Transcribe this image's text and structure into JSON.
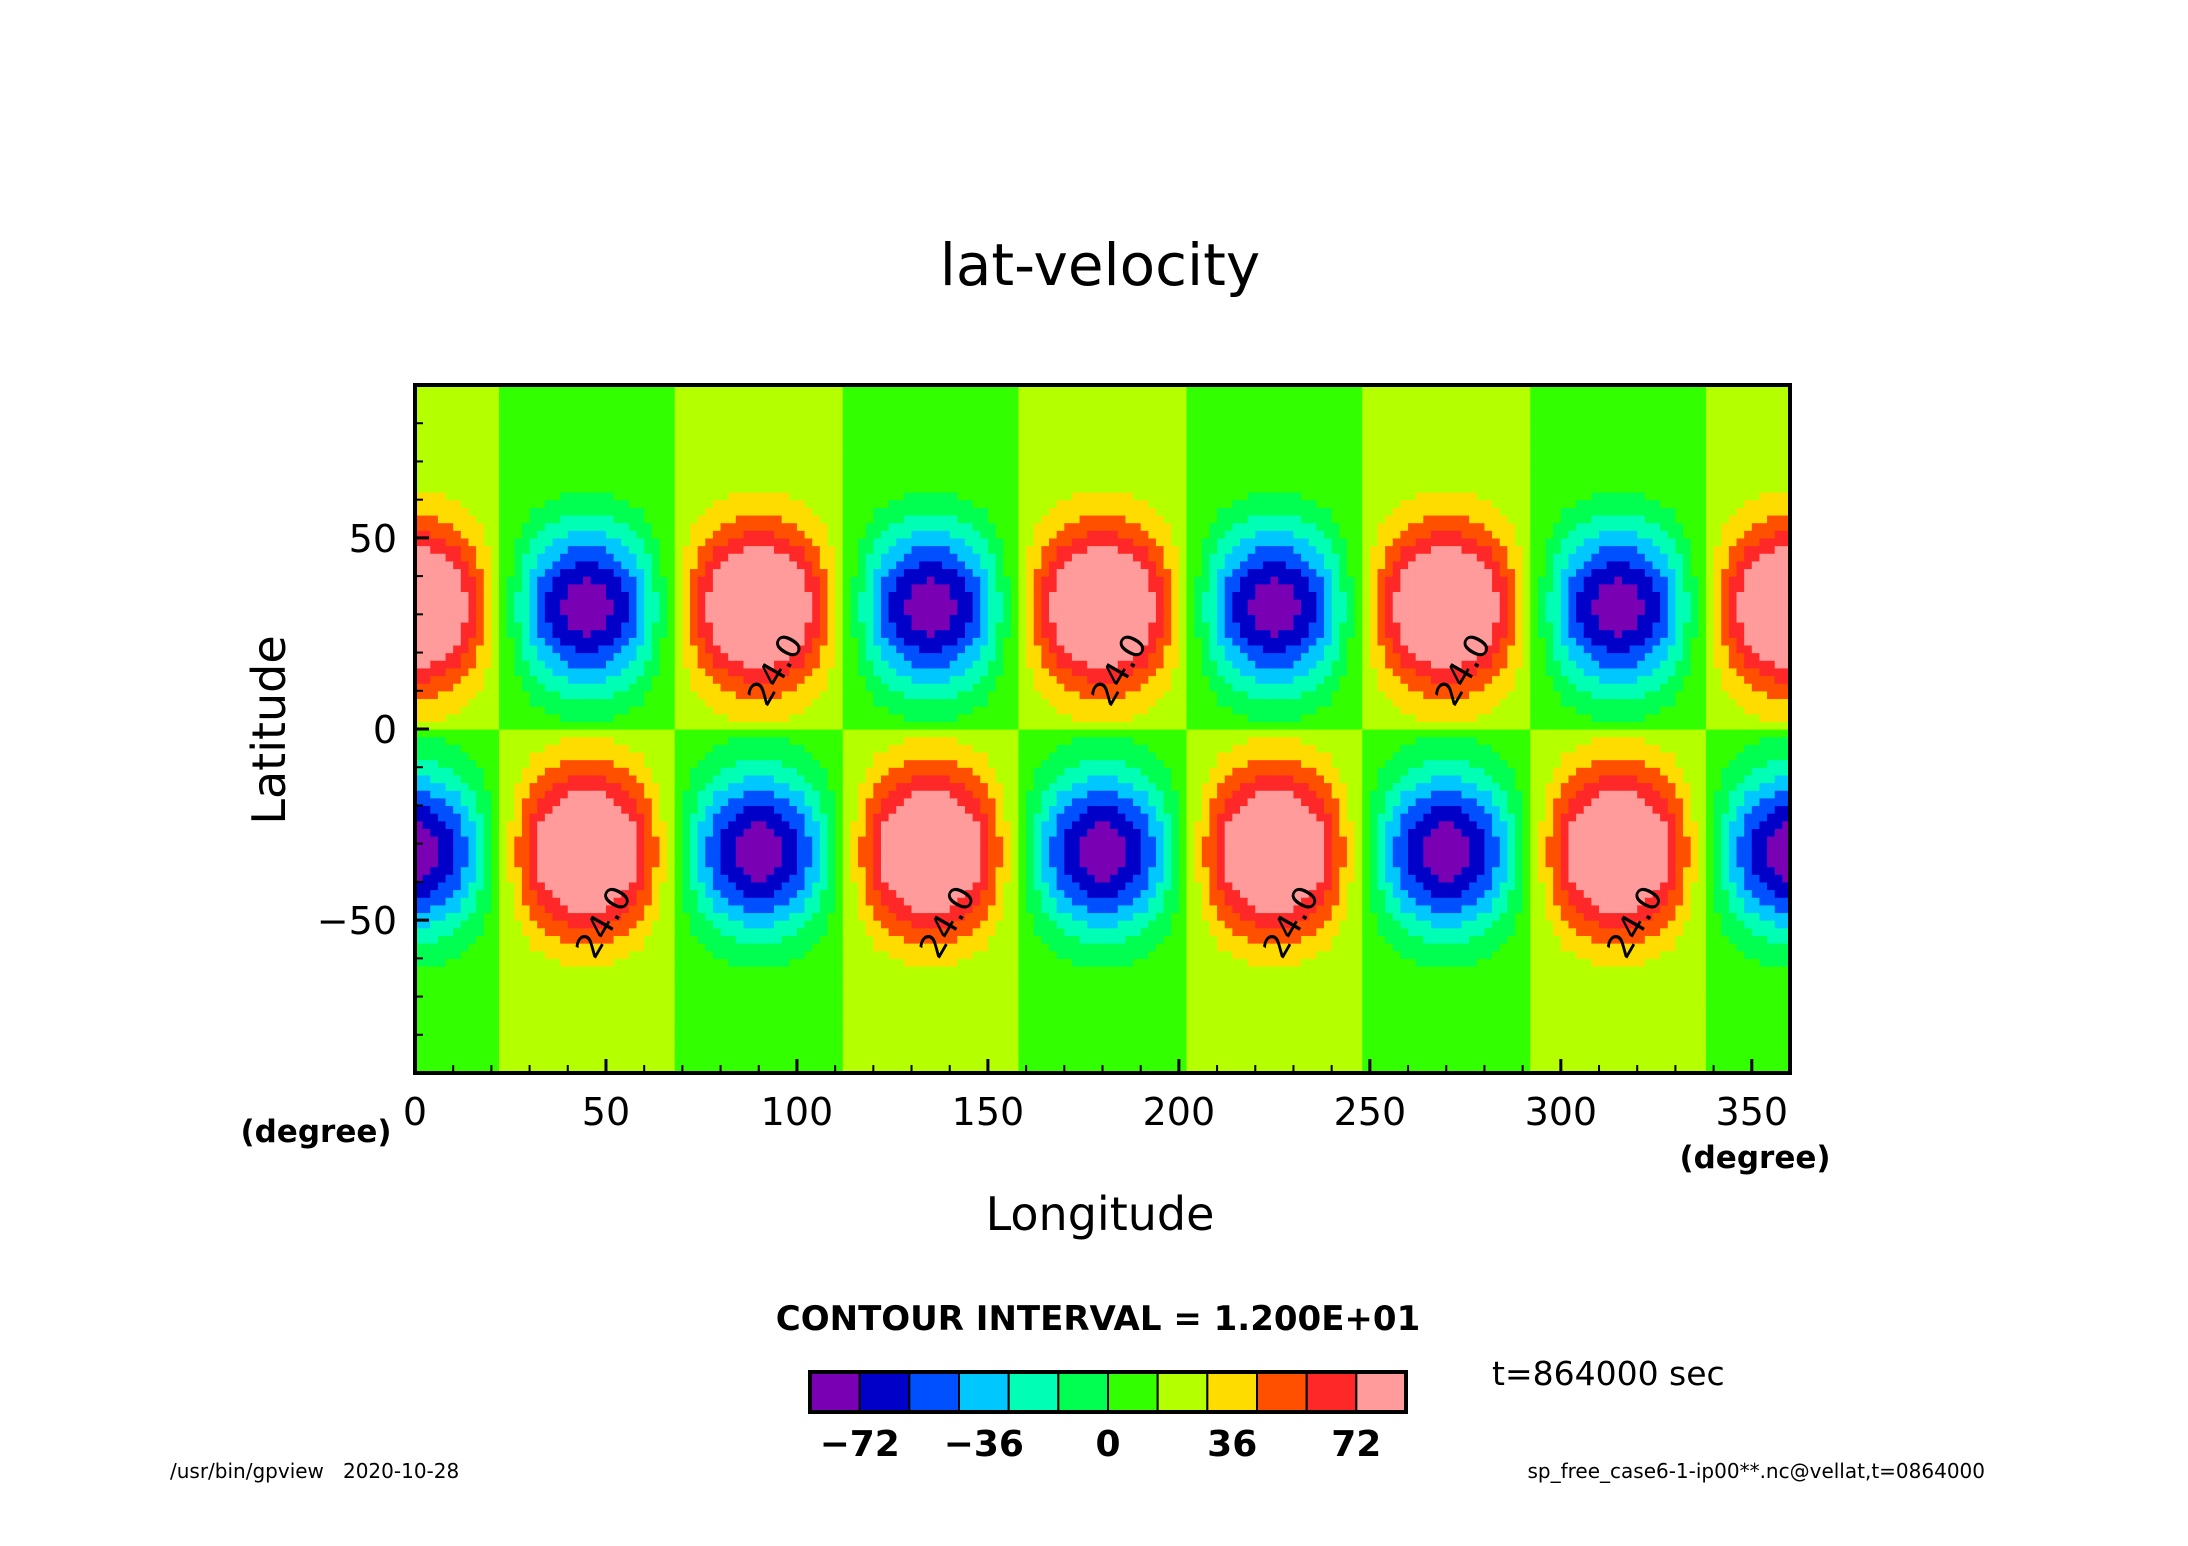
{
  "chart_data": {
    "type": "heatmap",
    "subtype": "filled-contour",
    "title": "lat-velocity",
    "xlabel": "Longitude",
    "ylabel": "Latitude",
    "x_unit": "(degree)",
    "y_unit": "(degree)",
    "xlim": [
      0,
      360
    ],
    "ylim": [
      -90,
      90
    ],
    "xticks": [
      0,
      50,
      100,
      150,
      200,
      250,
      300,
      350
    ],
    "yticks": [
      -50,
      0,
      50
    ],
    "contour_interval_text": "CONTOUR INTERVAL = 1.200E+01",
    "contour_interval": 12,
    "contour_label": "24.0",
    "contour_label_value": 24,
    "time_text": "t=864000 sec",
    "footer_left": "/usr/bin/gpview   2020-10-28",
    "footer_right": "sp_free_case6-1-ip00**.nc@vellat,t=0864000",
    "field": {
      "description_of_pattern": "wavenumber-4 cells centred at lat ±32; northern extrema at lon 0,90,180,270 (positive) and 45,135,225,315 (negative); antisymmetric in the south",
      "amplitude": 80,
      "wavenumber": 4,
      "center_lat": 32,
      "positive_centers_lon_north": [
        0,
        90,
        180,
        270,
        360
      ],
      "negative_centers_lon_north": [
        45,
        135,
        225,
        315
      ]
    },
    "colorbar": {
      "levels": [
        -84,
        -72,
        -60,
        -48,
        -36,
        -24,
        -12,
        0,
        12,
        24,
        36,
        48,
        60,
        72,
        84
      ],
      "tick_labels": [
        "-72",
        "-36",
        "0",
        "36",
        "72"
      ],
      "tick_values": [
        -72,
        -36,
        0,
        36,
        72
      ],
      "colors": [
        "#7a00b4",
        "#0000c8",
        "#0050ff",
        "#00c8ff",
        "#00ffb4",
        "#00ff50",
        "#32ff00",
        "#b4ff00",
        "#ffdc00",
        "#ff5000",
        "#ff2828",
        "#ff9b9b"
      ]
    },
    "grid": false,
    "legend": "bottom-center colorbar"
  }
}
